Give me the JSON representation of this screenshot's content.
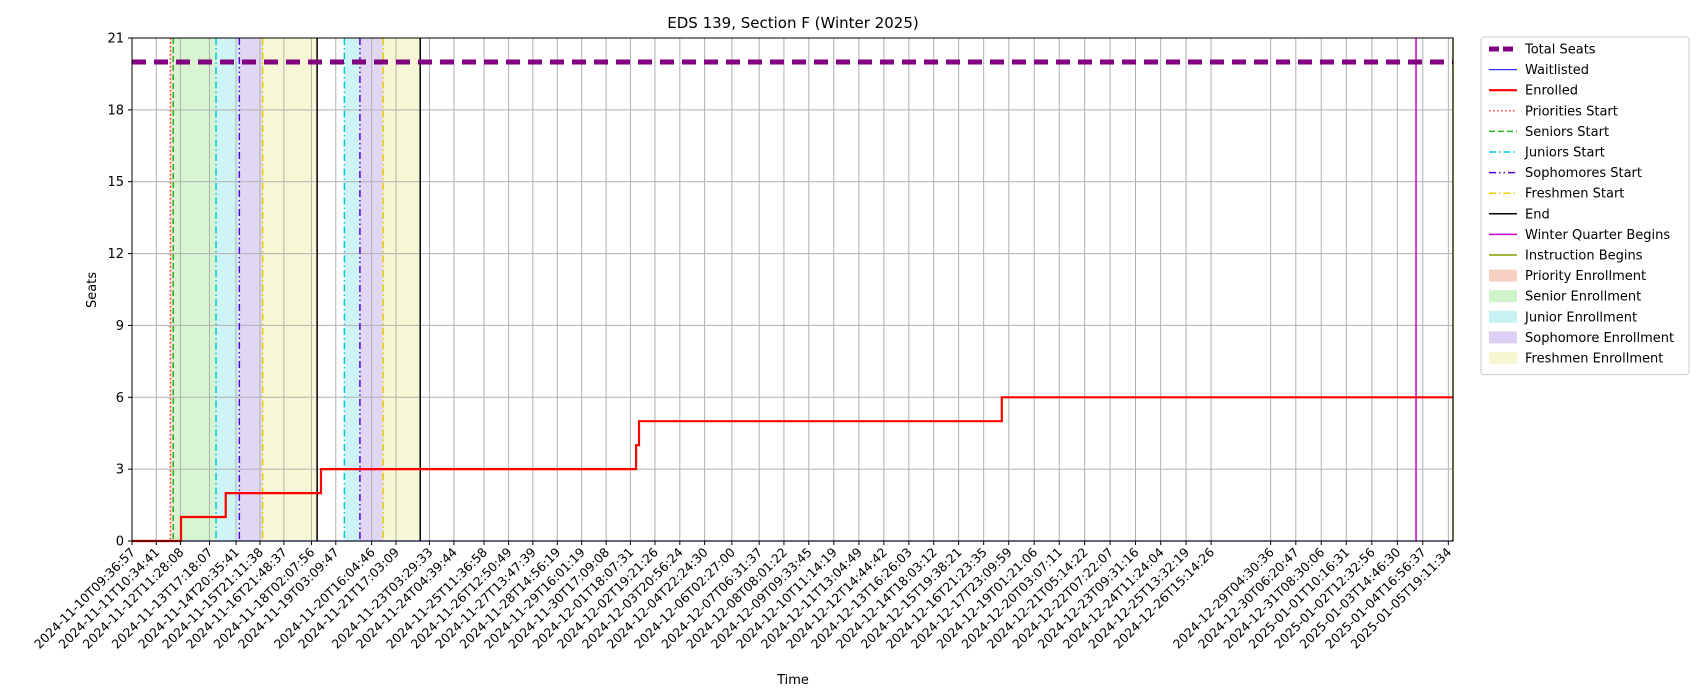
{
  "chart_data": {
    "type": "line",
    "title": "EDS 139, Section F (Winter 2025)",
    "xlabel": "Time",
    "ylabel": "Seats",
    "ylim": [
      0,
      21
    ],
    "yticks": [
      0,
      3,
      6,
      9,
      12,
      15,
      18,
      21
    ],
    "xlim": [
      "2024-11-10T09:36:57",
      "2025-01-06T00:00:00"
    ],
    "grid": true,
    "legend_position": "outside-right",
    "xtick_labels": [
      "2024-11-10T09:36:57",
      "2024-11-11T10:34:41",
      "2024-11-12T11:28:08",
      "2024-11-13T17:18:07",
      "2024-11-14T20:35:41",
      "2024-11-15T21:11:38",
      "2024-11-16T21:48:37",
      "2024-11-18T02:07:56",
      "2024-11-19T03:09:47",
      "2024-11-20T16:04:46",
      "2024-11-21T17:03:09",
      "2024-11-23T03:29:33",
      "2024-11-24T04:39:44",
      "2024-11-25T11:36:58",
      "2024-11-26T12:50:49",
      "2024-11-27T13:47:39",
      "2024-11-28T14:56:19",
      "2024-11-29T16:01:19",
      "2024-11-30T17:09:08",
      "2024-12-01T18:07:31",
      "2024-12-02T19:21:26",
      "2024-12-03T20:56:24",
      "2024-12-04T22:24:30",
      "2024-12-06T02:27:00",
      "2024-12-07T06:31:37",
      "2024-12-08T08:01:22",
      "2024-12-09T09:33:45",
      "2024-12-10T11:14:19",
      "2024-12-11T13:04:49",
      "2024-12-12T14:44:42",
      "2024-12-13T16:26:03",
      "2024-12-14T18:03:12",
      "2024-12-15T19:38:21",
      "2024-12-16T21:23:35",
      "2024-12-17T23:09:59",
      "2024-12-19T01:21:06",
      "2024-12-20T03:07:11",
      "2024-12-21T05:14:22",
      "2024-12-22T07:22:07",
      "2024-12-23T09:31:16",
      "2024-12-24T11:24:04",
      "2024-12-25T13:32:19",
      "2024-12-26T15:14:26",
      "2024-12-29T04:30:36",
      "2024-12-30T06:20:47",
      "2024-12-31T08:30:06",
      "2025-01-01T10:16:31",
      "2025-01-02T12:32:56",
      "2025-01-03T14:46:30",
      "2025-01-04T16:56:37",
      "2025-01-05T19:11:34"
    ],
    "series": [
      {
        "name": "Total Seats",
        "color": "#800080",
        "style": "dashed-thick",
        "points": [
          [
            "2024-11-10T09:36:57",
            20
          ],
          [
            "2025-01-06T00:00:00",
            20
          ]
        ]
      },
      {
        "name": "Waitlisted",
        "color": "#3030ff",
        "style": "solid",
        "points": [
          [
            "2024-11-10T09:36:57",
            0
          ],
          [
            "2025-01-06T00:00:00",
            0
          ]
        ]
      },
      {
        "name": "Enrolled",
        "color": "#ff0000",
        "style": "step",
        "points": [
          [
            "2024-11-10T09:36:57",
            0
          ],
          [
            "2024-11-12T12:00:00",
            0
          ],
          [
            "2024-11-12T12:00:00",
            1
          ],
          [
            "2024-11-14T10:00:00",
            1
          ],
          [
            "2024-11-14T10:00:00",
            2
          ],
          [
            "2024-11-18T12:00:00",
            2
          ],
          [
            "2024-11-18T12:00:00",
            3
          ],
          [
            "2024-12-02T00:00:00",
            3
          ],
          [
            "2024-12-02T00:00:00",
            4
          ],
          [
            "2024-12-02T03:00:00",
            4
          ],
          [
            "2024-12-02T03:00:00",
            5
          ],
          [
            "2024-12-17T16:00:00",
            5
          ],
          [
            "2024-12-17T16:00:00",
            6
          ],
          [
            "2025-01-06T00:00:00",
            6
          ]
        ]
      }
    ],
    "markers": [
      {
        "name": "Priorities Start",
        "color": "#ff3b3b",
        "style": "dotted",
        "times": [
          "2024-11-12T01:00:00"
        ]
      },
      {
        "name": "Seniors Start",
        "color": "#22bb22",
        "style": "dashed",
        "times": [
          "2024-11-12T04:00:00"
        ]
      },
      {
        "name": "Juniors Start",
        "color": "#00c8d8",
        "style": "dashdot",
        "times": [
          "2024-11-14T00:00:00",
          "2024-11-19T12:00:00"
        ]
      },
      {
        "name": "Sophomores Start",
        "color": "#5500dd",
        "style": "dashdotdot",
        "times": [
          "2024-11-15T00:00:00",
          "2024-11-20T04:00:00"
        ]
      },
      {
        "name": "Freshmen Start",
        "color": "#e8d000",
        "style": "dashdot",
        "times": [
          "2024-11-16T00:00:00",
          "2024-11-21T04:00:00"
        ]
      },
      {
        "name": "End",
        "color": "#000000",
        "style": "solid",
        "times": [
          "2024-11-18T08:00:00",
          "2024-11-22T18:00:00"
        ]
      },
      {
        "name": "Winter Quarter Begins",
        "color": "#cc00cc",
        "style": "solid",
        "times": [
          "2025-01-04T10:00:00"
        ]
      },
      {
        "name": "Instruction Begins",
        "color": "#80a000",
        "style": "solid",
        "times": [
          "2025-01-06T00:00:00"
        ]
      }
    ],
    "periods": [
      {
        "name": "Priority Enrollment",
        "color": "#f6c8b6",
        "ranges": [
          [
            "2024-11-12T01:00:00",
            "2024-11-12T04:00:00"
          ]
        ]
      },
      {
        "name": "Senior Enrollment",
        "color": "#c8f2c0",
        "ranges": [
          [
            "2024-11-12T04:00:00",
            "2024-11-14T00:00:00"
          ]
        ]
      },
      {
        "name": "Junior Enrollment",
        "color": "#bdf0f2",
        "ranges": [
          [
            "2024-11-14T00:00:00",
            "2024-11-15T00:00:00"
          ],
          [
            "2024-11-19T12:00:00",
            "2024-11-20T04:00:00"
          ]
        ]
      },
      {
        "name": "Sophomore Enrollment",
        "color": "#d8c8f2",
        "ranges": [
          [
            "2024-11-15T00:00:00",
            "2024-11-16T00:00:00"
          ],
          [
            "2024-11-20T04:00:00",
            "2024-11-21T04:00:00"
          ]
        ]
      },
      {
        "name": "Freshmen Enrollment",
        "color": "#f4f4c8",
        "ranges": [
          [
            "2024-11-16T00:00:00",
            "2024-11-18T08:00:00"
          ],
          [
            "2024-11-21T04:00:00",
            "2024-11-22T18:00:00"
          ]
        ]
      }
    ]
  }
}
